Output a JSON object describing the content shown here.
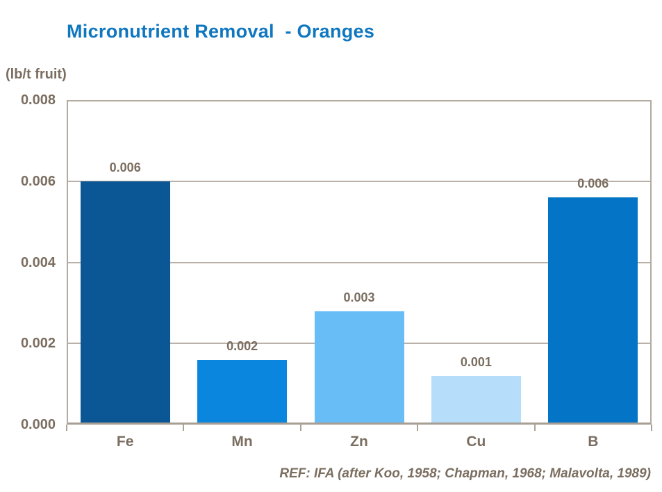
{
  "title": "Micronutrient Removal  - Oranges",
  "axis_unit_label": "(lb/t fruit)",
  "footer_ref": "REF: IFA (after Koo, 1958; Chapman, 1968; Malavolta, 1989)",
  "chart_data": {
    "type": "bar",
    "title": "Micronutrient Removal - Oranges",
    "categories": [
      "Fe",
      "Mn",
      "Zn",
      "Cu",
      "B"
    ],
    "values": [
      0.006,
      0.0016,
      0.0028,
      0.0012,
      0.0056
    ],
    "bar_labels": [
      "0.006",
      "0.002",
      "0.003",
      "0.001",
      "0.006"
    ],
    "bar_colors": [
      "#0b5694",
      "#0a86de",
      "#69bdf7",
      "#b6defa",
      "#0374c6"
    ],
    "xlabel": "",
    "ylabel": "(lb/t fruit)",
    "ylim": [
      0,
      0.008
    ],
    "yticks": [
      "0.000",
      "0.002",
      "0.004",
      "0.006",
      "0.008"
    ],
    "grid": true,
    "legend_position": "none"
  },
  "colors": {
    "title_text": "#0f77c0",
    "axis_text": "#7b6e60",
    "plot_border": "#b3aaa0",
    "gridline": "#b9b1a8",
    "background": "#ffffff"
  }
}
